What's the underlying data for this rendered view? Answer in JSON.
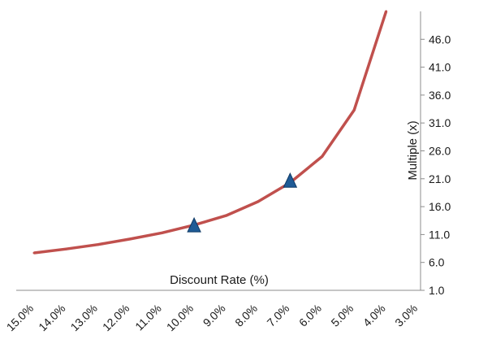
{
  "chart_data": {
    "type": "line",
    "title": "",
    "xlabel": "Discount Rate (%)",
    "ylabel": "Multiple (x)",
    "x_ticks": [
      "15.0%",
      "14.0%",
      "13.0%",
      "12.0%",
      "11.0%",
      "10.0%",
      "9.0%",
      "8.0%",
      "7.0%",
      "6.0%",
      "5.0%",
      "4.0%",
      "3.0%"
    ],
    "y_ticks": [
      "1.0",
      "6.0",
      "11.0",
      "16.0",
      "21.0",
      "26.0",
      "31.0",
      "36.0",
      "41.0",
      "46.0"
    ],
    "ylim": [
      1.0,
      51.0
    ],
    "xlim": [
      15.0,
      3.0
    ],
    "x_reversed": true,
    "y_axis_position": "right",
    "grid": false,
    "legend": "none",
    "series": [
      {
        "x": [
          15.0,
          14.0,
          13.0,
          12.0,
          11.0,
          10.0,
          9.0,
          8.0,
          7.0,
          6.0,
          5.0,
          4.0
        ],
        "values": [
          7.7,
          8.4,
          9.2,
          10.2,
          11.3,
          12.7,
          14.4,
          16.9,
          20.3,
          25.0,
          33.3,
          51.0
        ],
        "color": "#c0504d"
      }
    ],
    "markers": [
      {
        "x": 10.0,
        "y": 12.5,
        "color": "#1f5b96"
      },
      {
        "x": 7.0,
        "y": 20.5,
        "color": "#1f5b96"
      }
    ]
  }
}
